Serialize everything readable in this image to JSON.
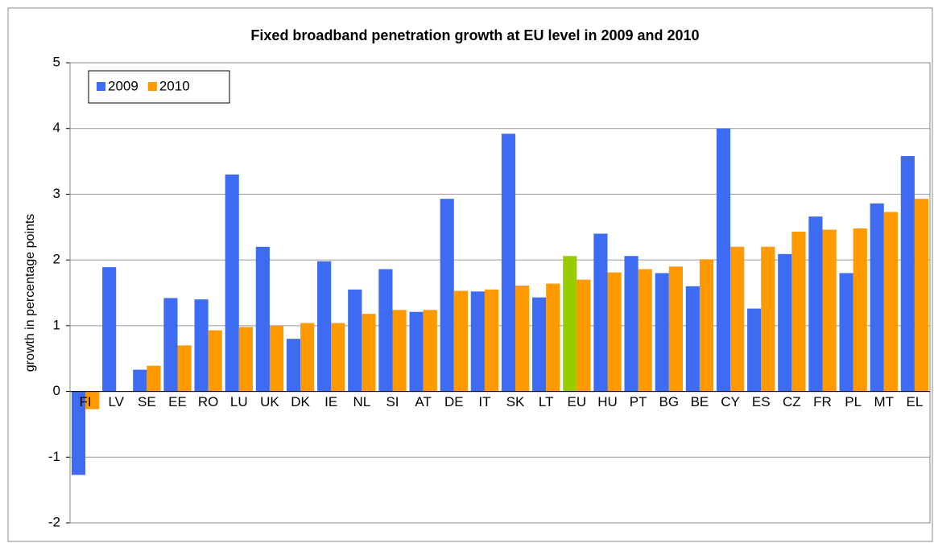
{
  "chart_data": {
    "type": "bar",
    "title": "Fixed broadband penetration growth at EU level in 2009 and 2010",
    "y_label": "growth in percentage points",
    "categories": [
      "FI",
      "LV",
      "SE",
      "EE",
      "RO",
      "LU",
      "UK",
      "DK",
      "IE",
      "NL",
      "SI",
      "AT",
      "DE",
      "IT",
      "SK",
      "LT",
      "EU",
      "HU",
      "PT",
      "BG",
      "BE",
      "CY",
      "ES",
      "CZ",
      "FR",
      "PL",
      "MT",
      "EL"
    ],
    "series": [
      {
        "name": "2009",
        "color": "#3d6cf2",
        "highlight": {
          "category": "EU",
          "color": "#99cc00"
        },
        "values": [
          -1.27,
          1.89,
          0.33,
          1.42,
          1.4,
          3.3,
          2.2,
          0.8,
          1.98,
          1.55,
          1.86,
          1.21,
          2.93,
          1.52,
          3.92,
          1.43,
          2.06,
          2.4,
          2.06,
          1.8,
          1.6,
          4.0,
          1.26,
          2.09,
          2.66,
          1.8,
          2.86,
          3.58
        ]
      },
      {
        "name": "2010",
        "color": "#ff9900",
        "values": [
          -0.27,
          null,
          0.39,
          0.7,
          0.93,
          0.98,
          1.0,
          1.04,
          1.04,
          1.18,
          1.24,
          1.24,
          1.53,
          1.55,
          1.61,
          1.64,
          1.7,
          1.81,
          1.86,
          1.9,
          2.01,
          2.2,
          2.2,
          2.43,
          2.46,
          2.48,
          2.73,
          2.93
        ]
      }
    ],
    "ylim": [
      -2,
      5
    ],
    "yticks": [
      -2,
      -1,
      0,
      1,
      2,
      3,
      4,
      5
    ],
    "grid": true,
    "legend": "upper-left"
  }
}
